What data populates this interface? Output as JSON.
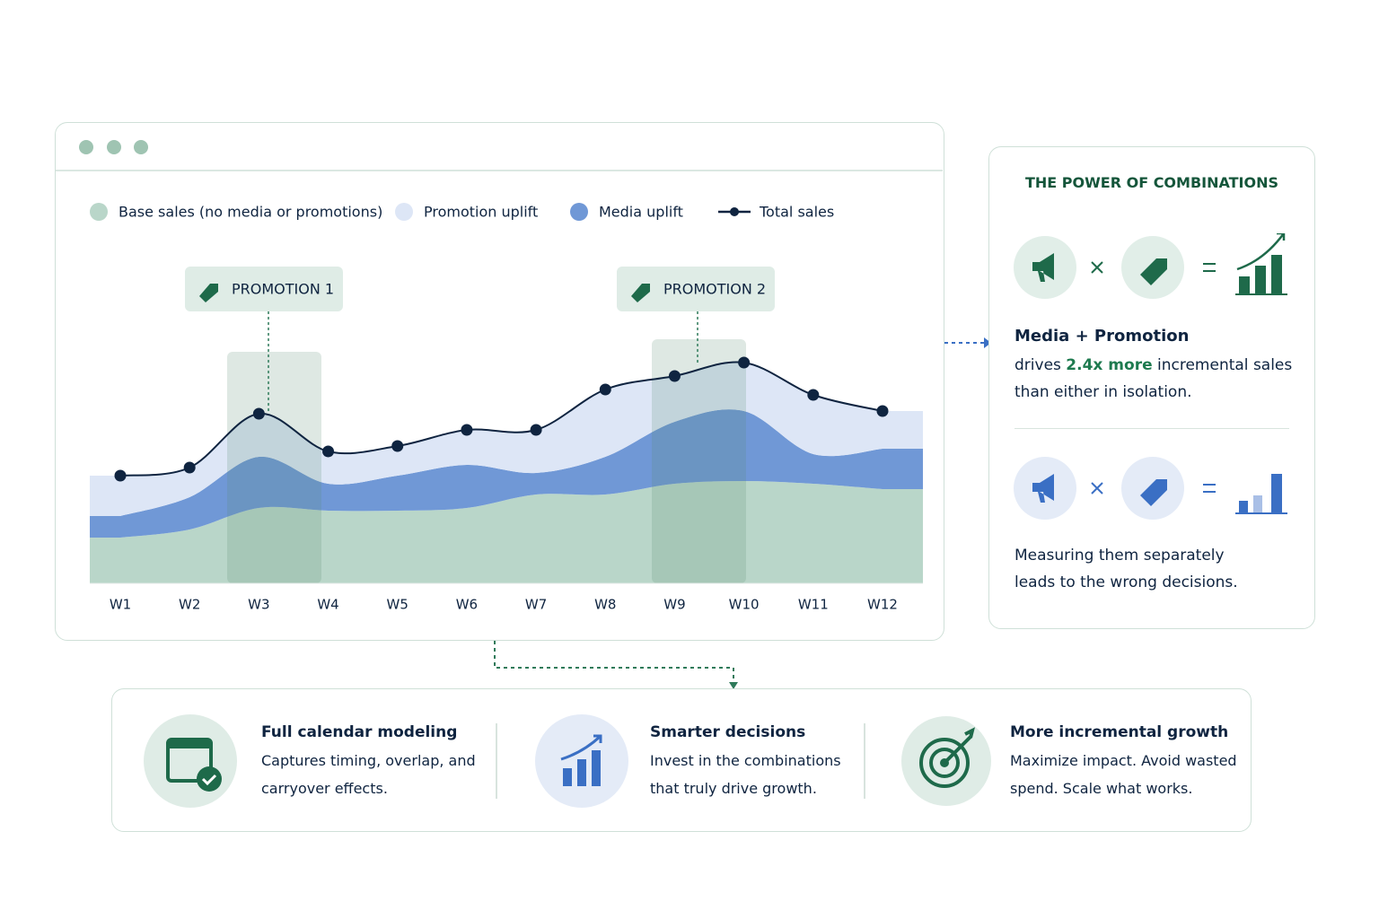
{
  "chart_data": {
    "type": "area",
    "categories": [
      "W1",
      "W2",
      "W3",
      "W4",
      "W5",
      "W6",
      "W7",
      "W8",
      "W9",
      "W10",
      "W11",
      "W12"
    ],
    "series": [
      {
        "name": "Base sales (no media or promotions)",
        "color": "#b9d6c9",
        "values": [
          17,
          20,
          28,
          27,
          27,
          28,
          33,
          33,
          37,
          38,
          37,
          35
        ]
      },
      {
        "name": "Promotion uplift",
        "color": "#dde6f6",
        "values": [
          15,
          11,
          16,
          12,
          11,
          13,
          16,
          25,
          17,
          18,
          22,
          14
        ]
      },
      {
        "name": "Media uplift",
        "color": "#7098d6",
        "values": [
          8,
          12,
          19,
          10,
          13,
          16,
          8,
          14,
          23,
          26,
          11,
          15
        ]
      },
      {
        "name": "Total sales",
        "color": "#0f2440",
        "type": "line",
        "values": [
          40,
          43,
          63,
          49,
          51,
          57,
          57,
          72,
          77,
          82,
          70,
          64
        ]
      }
    ],
    "ylim": [
      0,
      100
    ],
    "annotations": [
      "PROMOTION 1",
      "PROMOTION 2"
    ]
  },
  "side_panel": {
    "title": "THE POWER OF COMBINATIONS",
    "heading": "Media + Promotion",
    "text_before": "drives",
    "highlight": "2.4x more",
    "text_after": "incremental sales than either in isolation.",
    "note": "Measuring them separately leads to the wrong decisions."
  },
  "features": [
    {
      "title": "Full calendar modeling",
      "text": "Captures timing, overlap, and carryover effects."
    },
    {
      "title": "Smarter decisions",
      "text": "Invest in the combinations that truly drive growth."
    },
    {
      "title": "More incremental growth",
      "text": "Maximize impact. Avoid wasted spend. Scale what works."
    }
  ]
}
